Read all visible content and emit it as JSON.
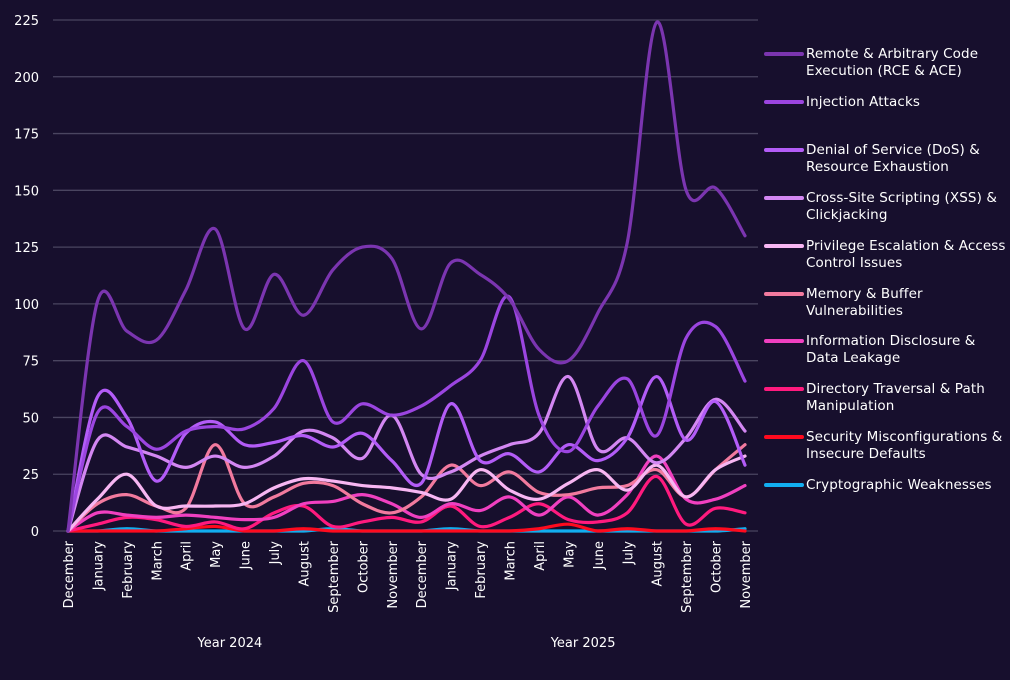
{
  "chart_data": {
    "type": "line",
    "title": "",
    "xlabel": "",
    "ylabel": "",
    "ylim": [
      0,
      225
    ],
    "yticks": [
      0,
      25,
      50,
      75,
      100,
      125,
      150,
      175,
      200,
      225
    ],
    "grid": true,
    "legend_position": "right",
    "x": [
      "December",
      "January",
      "February",
      "March",
      "April",
      "May",
      "June",
      "July",
      "August",
      "September",
      "October",
      "November",
      "December",
      "January",
      "February",
      "March",
      "April",
      "May",
      "June",
      "July",
      "August",
      "September",
      "October",
      "November"
    ],
    "x_groups": [
      {
        "label": "Year 2024",
        "start": 0,
        "end": 11
      },
      {
        "label": "Year 2025",
        "start": 12,
        "end": 23
      }
    ],
    "series": [
      {
        "name": "Remote & Arbitrary Code Execution (RCE & ACE)",
        "color": "#7b35b0",
        "values": [
          0,
          101,
          88,
          84,
          106,
          133,
          89,
          113,
          95,
          115,
          125,
          120,
          89,
          118,
          113,
          102,
          80,
          75,
          96,
          127,
          224,
          150,
          151,
          130
        ]
      },
      {
        "name": "Injection Attacks",
        "color": "#9b45e0",
        "values": [
          0,
          52,
          46,
          36,
          44,
          46,
          45,
          54,
          75,
          48,
          56,
          51,
          55,
          64,
          75,
          103,
          51,
          35,
          55,
          67,
          42,
          85,
          90,
          66
        ]
      },
      {
        "name": "Denial of Service (DoS) & Resource Exhaustion",
        "color": "#b35cf7",
        "values": [
          0,
          59,
          50,
          22,
          43,
          48,
          38,
          39,
          42,
          37,
          43,
          31,
          21,
          56,
          31,
          34,
          26,
          38,
          31,
          41,
          68,
          40,
          57,
          29
        ]
      },
      {
        "name": "Cross-Site Scripting (XSS) & Clickjacking",
        "color": "#d387f2",
        "values": [
          0,
          40,
          37,
          33,
          28,
          33,
          28,
          33,
          44,
          41,
          32,
          51,
          25,
          26,
          33,
          38,
          43,
          68,
          36,
          41,
          30,
          41,
          58,
          44
        ]
      },
      {
        "name": "Privilege Escalation & Access Control Issues",
        "color": "#f7b6f2",
        "values": [
          0,
          14,
          25,
          11,
          11,
          11,
          12,
          19,
          23,
          22,
          20,
          19,
          17,
          14,
          27,
          18,
          14,
          21,
          27,
          18,
          29,
          15,
          27,
          33
        ]
      },
      {
        "name": "Memory & Buffer Vulnerabilities",
        "color": "#f27a9e",
        "values": [
          0,
          12,
          16,
          11,
          10,
          38,
          12,
          15,
          21,
          20,
          12,
          8,
          15,
          29,
          20,
          26,
          17,
          16,
          19,
          20,
          27,
          15,
          27,
          38
        ]
      },
      {
        "name": "Information Disclosure & Data Leakage",
        "color": "#f040c0",
        "values": [
          0,
          8,
          7,
          6,
          7,
          6,
          5,
          6,
          12,
          13,
          16,
          12,
          6,
          12,
          9,
          15,
          7,
          15,
          7,
          16,
          33,
          14,
          14,
          20
        ]
      },
      {
        "name": "Directory Traversal & Path Manipulation",
        "color": "#ff1a7e",
        "values": [
          0,
          3,
          6,
          5,
          2,
          4,
          1,
          8,
          11,
          2,
          4,
          6,
          4,
          11,
          2,
          6,
          12,
          5,
          4,
          8,
          24,
          3,
          10,
          8
        ]
      },
      {
        "name": "Security Misconfigurations & Insecure Defaults",
        "color": "#ff0a1e",
        "values": [
          0,
          0,
          0,
          0,
          1,
          2,
          0,
          0,
          1,
          0,
          0,
          0,
          0,
          0,
          0,
          0,
          1,
          3,
          0,
          1,
          0,
          0,
          1,
          0
        ]
      },
      {
        "name": "Cryptographic Weaknesses",
        "color": "#12aef0",
        "values": [
          0,
          0,
          1,
          0,
          0,
          0,
          0,
          0,
          0,
          1,
          0,
          0,
          0,
          1,
          0,
          0,
          0,
          0,
          0,
          0,
          0,
          0,
          0,
          1
        ]
      }
    ]
  },
  "legend": {
    "items": [
      {
        "label": "Remote & Arbitrary Code Execution (RCE & ACE)"
      },
      {
        "label": "Injection Attacks"
      },
      {
        "label": "Denial of Service (DoS) & Resource Exhaustion"
      },
      {
        "label": "Cross-Site Scripting (XSS) & Clickjacking"
      },
      {
        "label": "Privilege Escalation & Access Control Issues"
      },
      {
        "label": "Memory & Buffer Vulnerabilities"
      },
      {
        "label": "Information Disclosure & Data Leakage"
      },
      {
        "label": "Directory Traversal & Path Manipulation"
      },
      {
        "label": "Security Misconfigurations & Insecure Defaults"
      },
      {
        "label": "Cryptographic Weaknesses"
      }
    ]
  }
}
